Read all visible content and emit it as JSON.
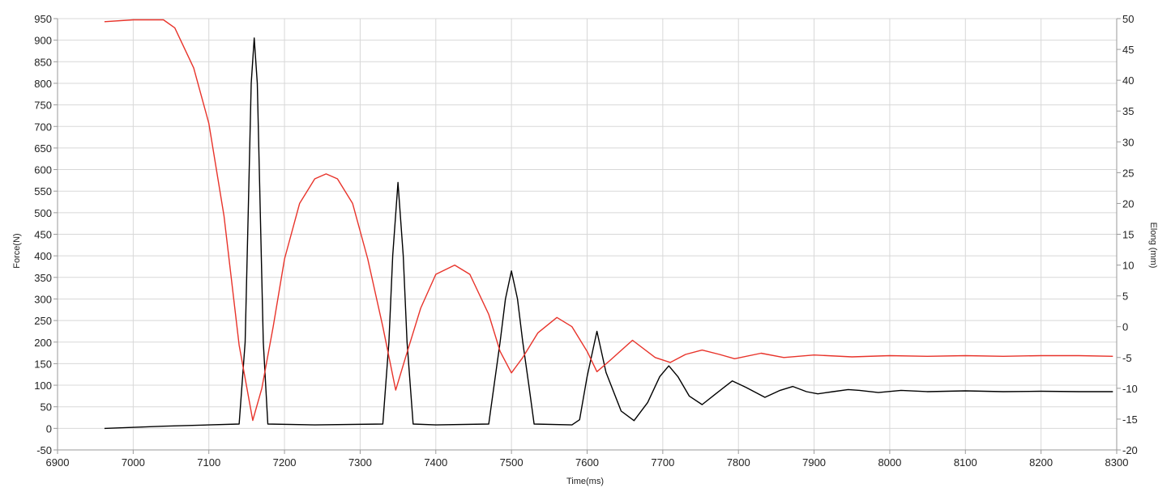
{
  "chart_data": {
    "type": "line",
    "title": "",
    "xlabel": "Time(ms)",
    "ylabel_left": "Force(N)",
    "ylabel_right": "Elong (mm)",
    "xlim": [
      6900,
      8300
    ],
    "ylim_left": [
      -50,
      950
    ],
    "ylim_right": [
      -20,
      50
    ],
    "x_ticks": [
      6900,
      7000,
      7100,
      7200,
      7300,
      7400,
      7500,
      7600,
      7700,
      7800,
      7900,
      8000,
      8100,
      8200,
      8300
    ],
    "y_ticks_left": [
      -50,
      0,
      50,
      100,
      150,
      200,
      250,
      300,
      350,
      400,
      450,
      500,
      550,
      600,
      650,
      700,
      750,
      800,
      850,
      900,
      950
    ],
    "y_ticks_right": [
      -20,
      -15,
      -10,
      -5,
      0,
      5,
      10,
      15,
      20,
      25,
      30,
      35,
      40,
      45,
      50
    ],
    "grid": true,
    "series": [
      {
        "axis": "left",
        "color": "#000000",
        "points": [
          [
            6962,
            0
          ],
          [
            7040,
            5
          ],
          [
            7100,
            8
          ],
          [
            7140,
            10
          ],
          [
            7148,
            200
          ],
          [
            7152,
            500
          ],
          [
            7156,
            800
          ],
          [
            7160,
            905
          ],
          [
            7164,
            800
          ],
          [
            7168,
            500
          ],
          [
            7172,
            200
          ],
          [
            7178,
            10
          ],
          [
            7240,
            8
          ],
          [
            7330,
            10
          ],
          [
            7338,
            200
          ],
          [
            7343,
            400
          ],
          [
            7350,
            570
          ],
          [
            7357,
            400
          ],
          [
            7362,
            200
          ],
          [
            7370,
            10
          ],
          [
            7400,
            8
          ],
          [
            7470,
            10
          ],
          [
            7477,
            100
          ],
          [
            7485,
            200
          ],
          [
            7492,
            300
          ],
          [
            7500,
            365
          ],
          [
            7508,
            300
          ],
          [
            7515,
            200
          ],
          [
            7523,
            100
          ],
          [
            7530,
            10
          ],
          [
            7580,
            8
          ],
          [
            7590,
            20
          ],
          [
            7600,
            120
          ],
          [
            7613,
            225
          ],
          [
            7625,
            130
          ],
          [
            7645,
            40
          ],
          [
            7662,
            18
          ],
          [
            7680,
            60
          ],
          [
            7696,
            120
          ],
          [
            7708,
            145
          ],
          [
            7720,
            120
          ],
          [
            7735,
            75
          ],
          [
            7752,
            55
          ],
          [
            7770,
            80
          ],
          [
            7792,
            110
          ],
          [
            7810,
            95
          ],
          [
            7835,
            72
          ],
          [
            7855,
            88
          ],
          [
            7872,
            97
          ],
          [
            7890,
            85
          ],
          [
            7905,
            80
          ],
          [
            7925,
            85
          ],
          [
            7945,
            90
          ],
          [
            7960,
            88
          ],
          [
            7985,
            83
          ],
          [
            8015,
            88
          ],
          [
            8050,
            85
          ],
          [
            8100,
            87
          ],
          [
            8150,
            85
          ],
          [
            8200,
            86
          ],
          [
            8250,
            85
          ],
          [
            8295,
            85
          ]
        ]
      },
      {
        "axis": "right",
        "color": "#e8332a",
        "points": [
          [
            6962,
            49.5
          ],
          [
            7000,
            49.8
          ],
          [
            7040,
            49.8
          ],
          [
            7055,
            48.5
          ],
          [
            7080,
            42
          ],
          [
            7100,
            33
          ],
          [
            7120,
            18
          ],
          [
            7140,
            -3
          ],
          [
            7158,
            -15.2
          ],
          [
            7170,
            -10
          ],
          [
            7185,
            0
          ],
          [
            7200,
            11
          ],
          [
            7220,
            20
          ],
          [
            7240,
            24
          ],
          [
            7255,
            24.8
          ],
          [
            7270,
            24
          ],
          [
            7290,
            20
          ],
          [
            7310,
            11
          ],
          [
            7330,
            0
          ],
          [
            7347,
            -10.3
          ],
          [
            7360,
            -5
          ],
          [
            7380,
            3
          ],
          [
            7400,
            8.5
          ],
          [
            7425,
            10
          ],
          [
            7445,
            8.5
          ],
          [
            7470,
            2
          ],
          [
            7485,
            -4
          ],
          [
            7500,
            -7.5
          ],
          [
            7515,
            -5
          ],
          [
            7535,
            -1
          ],
          [
            7560,
            1.5
          ],
          [
            7580,
            0
          ],
          [
            7600,
            -4
          ],
          [
            7613,
            -7.3
          ],
          [
            7630,
            -5.5
          ],
          [
            7660,
            -2.2
          ],
          [
            7690,
            -5
          ],
          [
            7710,
            -5.8
          ],
          [
            7730,
            -4.5
          ],
          [
            7752,
            -3.8
          ],
          [
            7775,
            -4.5
          ],
          [
            7795,
            -5.2
          ],
          [
            7830,
            -4.3
          ],
          [
            7860,
            -5
          ],
          [
            7900,
            -4.6
          ],
          [
            7950,
            -4.9
          ],
          [
            8000,
            -4.7
          ],
          [
            8050,
            -4.8
          ],
          [
            8100,
            -4.7
          ],
          [
            8150,
            -4.8
          ],
          [
            8200,
            -4.7
          ],
          [
            8250,
            -4.7
          ],
          [
            8295,
            -4.8
          ]
        ]
      }
    ]
  }
}
